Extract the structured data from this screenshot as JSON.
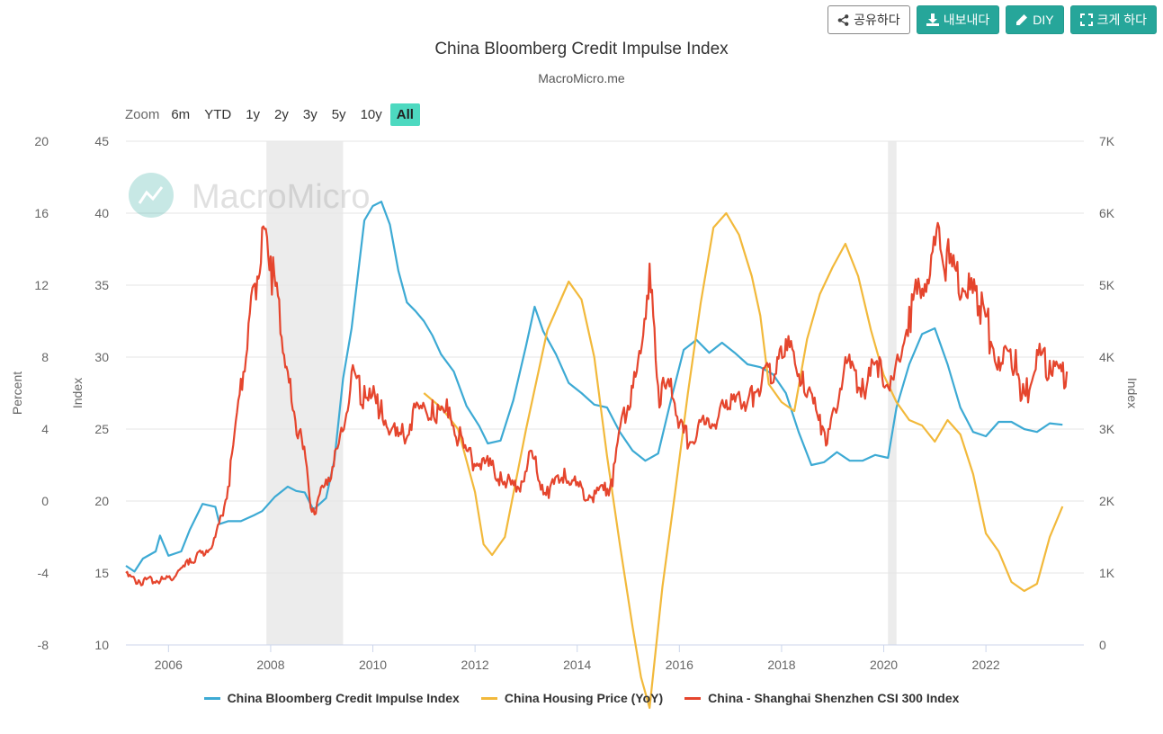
{
  "toolbar": {
    "share_label": "공유하다",
    "export_label": "내보내다",
    "diy_label": "DIY",
    "fullscreen_label": "크게 하다"
  },
  "zoom": {
    "label": "Zoom",
    "options": [
      "6m",
      "YTD",
      "1y",
      "2y",
      "3y",
      "5y",
      "10y",
      "All"
    ],
    "active": "All"
  },
  "watermark": "MacroMicro",
  "colors": {
    "impulse": "#3daad4",
    "housing": "#f2b93b",
    "csi300": "#e5452d",
    "shading": "#ececec",
    "zoom_active": "#4dd9c0",
    "button": "#26a69a"
  },
  "chart_data": {
    "type": "line",
    "title": "China Bloomberg Credit Impulse Index",
    "subtitle": "MacroMicro.me",
    "x_range": [
      "2005-03",
      "2023-12"
    ],
    "x_ticks": [
      "2006",
      "2008",
      "2010",
      "2012",
      "2014",
      "2016",
      "2018",
      "2020",
      "2022"
    ],
    "axes": {
      "percent": {
        "label": "Percent",
        "range": [
          -8,
          20
        ],
        "ticks": [
          "-8",
          "-4",
          "0",
          "4",
          "8",
          "12",
          "16",
          "20"
        ]
      },
      "index_left": {
        "label": "Index",
        "range": [
          10,
          45
        ],
        "ticks": [
          "10",
          "15",
          "20",
          "25",
          "30",
          "35",
          "40",
          "45"
        ]
      },
      "index_right": {
        "label": "Index",
        "range": [
          0,
          7000
        ],
        "ticks": [
          "0",
          "1K",
          "2K",
          "3K",
          "4K",
          "5K",
          "6K",
          "7K"
        ]
      }
    },
    "recessions": [
      [
        "2007-12",
        "2009-06"
      ],
      [
        "2020-02",
        "2020-04"
      ]
    ],
    "grid": true,
    "legend_position": "bottom",
    "series": [
      {
        "name": "China Bloomberg Credit Impulse Index",
        "axis": "index_left",
        "color": "#3daad4",
        "points": [
          [
            "2005-03",
            15.5
          ],
          [
            "2005-05",
            15.1
          ],
          [
            "2005-07",
            16.0
          ],
          [
            "2005-10",
            16.5
          ],
          [
            "2005-11",
            17.6
          ],
          [
            "2006-01",
            16.2
          ],
          [
            "2006-04",
            16.5
          ],
          [
            "2006-06",
            18.0
          ],
          [
            "2006-09",
            19.8
          ],
          [
            "2006-12",
            19.6
          ],
          [
            "2007-01",
            18.4
          ],
          [
            "2007-03",
            18.6
          ],
          [
            "2007-06",
            18.6
          ],
          [
            "2007-09",
            19.0
          ],
          [
            "2007-11",
            19.3
          ],
          [
            "2008-02",
            20.3
          ],
          [
            "2008-05",
            21.0
          ],
          [
            "2008-07",
            20.7
          ],
          [
            "2008-09",
            20.6
          ],
          [
            "2008-11",
            19.4
          ],
          [
            "2009-02",
            20.2
          ],
          [
            "2009-04",
            22.9
          ],
          [
            "2009-06",
            28.5
          ],
          [
            "2009-08",
            32.0
          ],
          [
            "2009-11",
            39.5
          ],
          [
            "2010-01",
            40.5
          ],
          [
            "2010-03",
            40.8
          ],
          [
            "2010-05",
            39.2
          ],
          [
            "2010-07",
            36.0
          ],
          [
            "2010-09",
            33.8
          ],
          [
            "2010-11",
            33.2
          ],
          [
            "2011-01",
            32.5
          ],
          [
            "2011-03",
            31.5
          ],
          [
            "2011-05",
            30.2
          ],
          [
            "2011-08",
            29.0
          ],
          [
            "2011-11",
            26.6
          ],
          [
            "2012-02",
            25.2
          ],
          [
            "2012-04",
            24.0
          ],
          [
            "2012-07",
            24.2
          ],
          [
            "2012-10",
            27.0
          ],
          [
            "2013-01",
            30.8
          ],
          [
            "2013-03",
            33.5
          ],
          [
            "2013-05",
            31.8
          ],
          [
            "2013-08",
            30.2
          ],
          [
            "2013-11",
            28.2
          ],
          [
            "2014-02",
            27.5
          ],
          [
            "2014-05",
            26.7
          ],
          [
            "2014-08",
            26.5
          ],
          [
            "2014-11",
            24.8
          ],
          [
            "2015-02",
            23.5
          ],
          [
            "2015-05",
            22.8
          ],
          [
            "2015-08",
            23.3
          ],
          [
            "2015-11",
            27.0
          ],
          [
            "2016-02",
            30.5
          ],
          [
            "2016-05",
            31.2
          ],
          [
            "2016-08",
            30.3
          ],
          [
            "2016-11",
            31.0
          ],
          [
            "2017-02",
            30.3
          ],
          [
            "2017-05",
            29.5
          ],
          [
            "2017-08",
            29.3
          ],
          [
            "2017-11",
            28.8
          ],
          [
            "2018-02",
            27.5
          ],
          [
            "2018-05",
            24.8
          ],
          [
            "2018-08",
            22.5
          ],
          [
            "2018-11",
            22.7
          ],
          [
            "2019-02",
            23.4
          ],
          [
            "2019-05",
            22.8
          ],
          [
            "2019-08",
            22.8
          ],
          [
            "2019-11",
            23.2
          ],
          [
            "2020-02",
            23.0
          ],
          [
            "2020-04",
            26.5
          ],
          [
            "2020-07",
            29.5
          ],
          [
            "2020-10",
            31.6
          ],
          [
            "2021-01",
            32.0
          ],
          [
            "2021-04",
            29.5
          ],
          [
            "2021-07",
            26.5
          ],
          [
            "2021-10",
            24.8
          ],
          [
            "2022-01",
            24.5
          ],
          [
            "2022-04",
            25.5
          ],
          [
            "2022-07",
            25.5
          ],
          [
            "2022-10",
            25.0
          ],
          [
            "2023-01",
            24.8
          ],
          [
            "2023-04",
            25.4
          ],
          [
            "2023-07",
            25.3
          ]
        ]
      },
      {
        "name": "China Housing Price (YoY)",
        "axis": "percent",
        "color": "#f2b93b",
        "points": [
          [
            "2011-01",
            6.0
          ],
          [
            "2011-05",
            5.2
          ],
          [
            "2011-09",
            4.0
          ],
          [
            "2012-01",
            0.5
          ],
          [
            "2012-03",
            -2.4
          ],
          [
            "2012-05",
            -3.0
          ],
          [
            "2012-08",
            -2.0
          ],
          [
            "2013-01",
            4.0
          ],
          [
            "2013-06",
            9.5
          ],
          [
            "2013-11",
            12.2
          ],
          [
            "2014-02",
            11.2
          ],
          [
            "2014-05",
            8.0
          ],
          [
            "2014-08",
            2.5
          ],
          [
            "2014-11",
            -2.4
          ],
          [
            "2015-02",
            -7.0
          ],
          [
            "2015-04",
            -9.8
          ],
          [
            "2015-06",
            -11.5
          ],
          [
            "2015-09",
            -4.8
          ],
          [
            "2015-12",
            0.5
          ],
          [
            "2016-03",
            6.0
          ],
          [
            "2016-06",
            11.0
          ],
          [
            "2016-09",
            15.2
          ],
          [
            "2016-12",
            16.0
          ],
          [
            "2017-03",
            14.8
          ],
          [
            "2017-06",
            12.5
          ],
          [
            "2017-08",
            10.3
          ],
          [
            "2017-10",
            6.5
          ],
          [
            "2018-01",
            5.5
          ],
          [
            "2018-04",
            5.0
          ],
          [
            "2018-07",
            9.0
          ],
          [
            "2018-10",
            11.5
          ],
          [
            "2019-01",
            13.0
          ],
          [
            "2019-04",
            14.3
          ],
          [
            "2019-07",
            12.5
          ],
          [
            "2019-10",
            9.5
          ],
          [
            "2020-01",
            7.0
          ],
          [
            "2020-04",
            5.5
          ],
          [
            "2020-07",
            4.5
          ],
          [
            "2020-10",
            4.2
          ],
          [
            "2021-01",
            3.3
          ],
          [
            "2021-04",
            4.5
          ],
          [
            "2021-07",
            3.7
          ],
          [
            "2021-10",
            1.5
          ],
          [
            "2022-01",
            -1.8
          ],
          [
            "2022-04",
            -2.8
          ],
          [
            "2022-07",
            -4.5
          ],
          [
            "2022-10",
            -5.0
          ],
          [
            "2023-01",
            -4.6
          ],
          [
            "2023-04",
            -2.0
          ],
          [
            "2023-07",
            -0.3
          ]
        ]
      },
      {
        "name": "China - Shanghai Shenzhen CSI 300 Index",
        "axis": "index_right",
        "color": "#e5452d",
        "points": [
          [
            "2005-03",
            1000
          ],
          [
            "2005-06",
            900
          ],
          [
            "2005-09",
            930
          ],
          [
            "2005-12",
            920
          ],
          [
            "2006-03",
            1000
          ],
          [
            "2006-06",
            1200
          ],
          [
            "2006-09",
            1300
          ],
          [
            "2006-12",
            1500
          ],
          [
            "2007-03",
            2200
          ],
          [
            "2007-06",
            3700
          ],
          [
            "2007-09",
            5000
          ],
          [
            "2007-11",
            5800
          ],
          [
            "2008-01",
            5400
          ],
          [
            "2008-03",
            4800
          ],
          [
            "2008-05",
            3800
          ],
          [
            "2008-08",
            3000
          ],
          [
            "2008-11",
            1900
          ],
          [
            "2009-02",
            2300
          ],
          [
            "2009-05",
            2800
          ],
          [
            "2009-08",
            3800
          ],
          [
            "2009-11",
            3600
          ],
          [
            "2010-03",
            3400
          ],
          [
            "2010-07",
            2900
          ],
          [
            "2010-11",
            3300
          ],
          [
            "2011-03",
            3400
          ],
          [
            "2011-07",
            3300
          ],
          [
            "2011-11",
            2700
          ],
          [
            "2012-03",
            2600
          ],
          [
            "2012-07",
            2400
          ],
          [
            "2012-11",
            2200
          ],
          [
            "2013-02",
            2700
          ],
          [
            "2013-06",
            2200
          ],
          [
            "2013-10",
            2450
          ],
          [
            "2014-02",
            2200
          ],
          [
            "2014-06",
            2150
          ],
          [
            "2014-09",
            2300
          ],
          [
            "2014-12",
            3300
          ],
          [
            "2015-03",
            3800
          ],
          [
            "2015-06",
            5300
          ],
          [
            "2015-08",
            3600
          ],
          [
            "2015-11",
            3700
          ],
          [
            "2016-02",
            2950
          ],
          [
            "2016-06",
            3100
          ],
          [
            "2016-12",
            3400
          ],
          [
            "2017-06",
            3600
          ],
          [
            "2017-12",
            4000
          ],
          [
            "2018-02",
            4250
          ],
          [
            "2018-06",
            3800
          ],
          [
            "2018-10",
            3200
          ],
          [
            "2018-12",
            3000
          ],
          [
            "2019-04",
            4000
          ],
          [
            "2019-08",
            3700
          ],
          [
            "2019-12",
            4000
          ],
          [
            "2020-03",
            3700
          ],
          [
            "2020-07",
            4700
          ],
          [
            "2021-02",
            5800
          ],
          [
            "2021-06",
            5200
          ],
          [
            "2021-12",
            4900
          ],
          [
            "2022-04",
            4000
          ],
          [
            "2022-08",
            4100
          ],
          [
            "2022-10",
            3500
          ],
          [
            "2023-01",
            4100
          ],
          [
            "2023-04",
            3950
          ],
          [
            "2023-08",
            3800
          ]
        ]
      }
    ]
  }
}
